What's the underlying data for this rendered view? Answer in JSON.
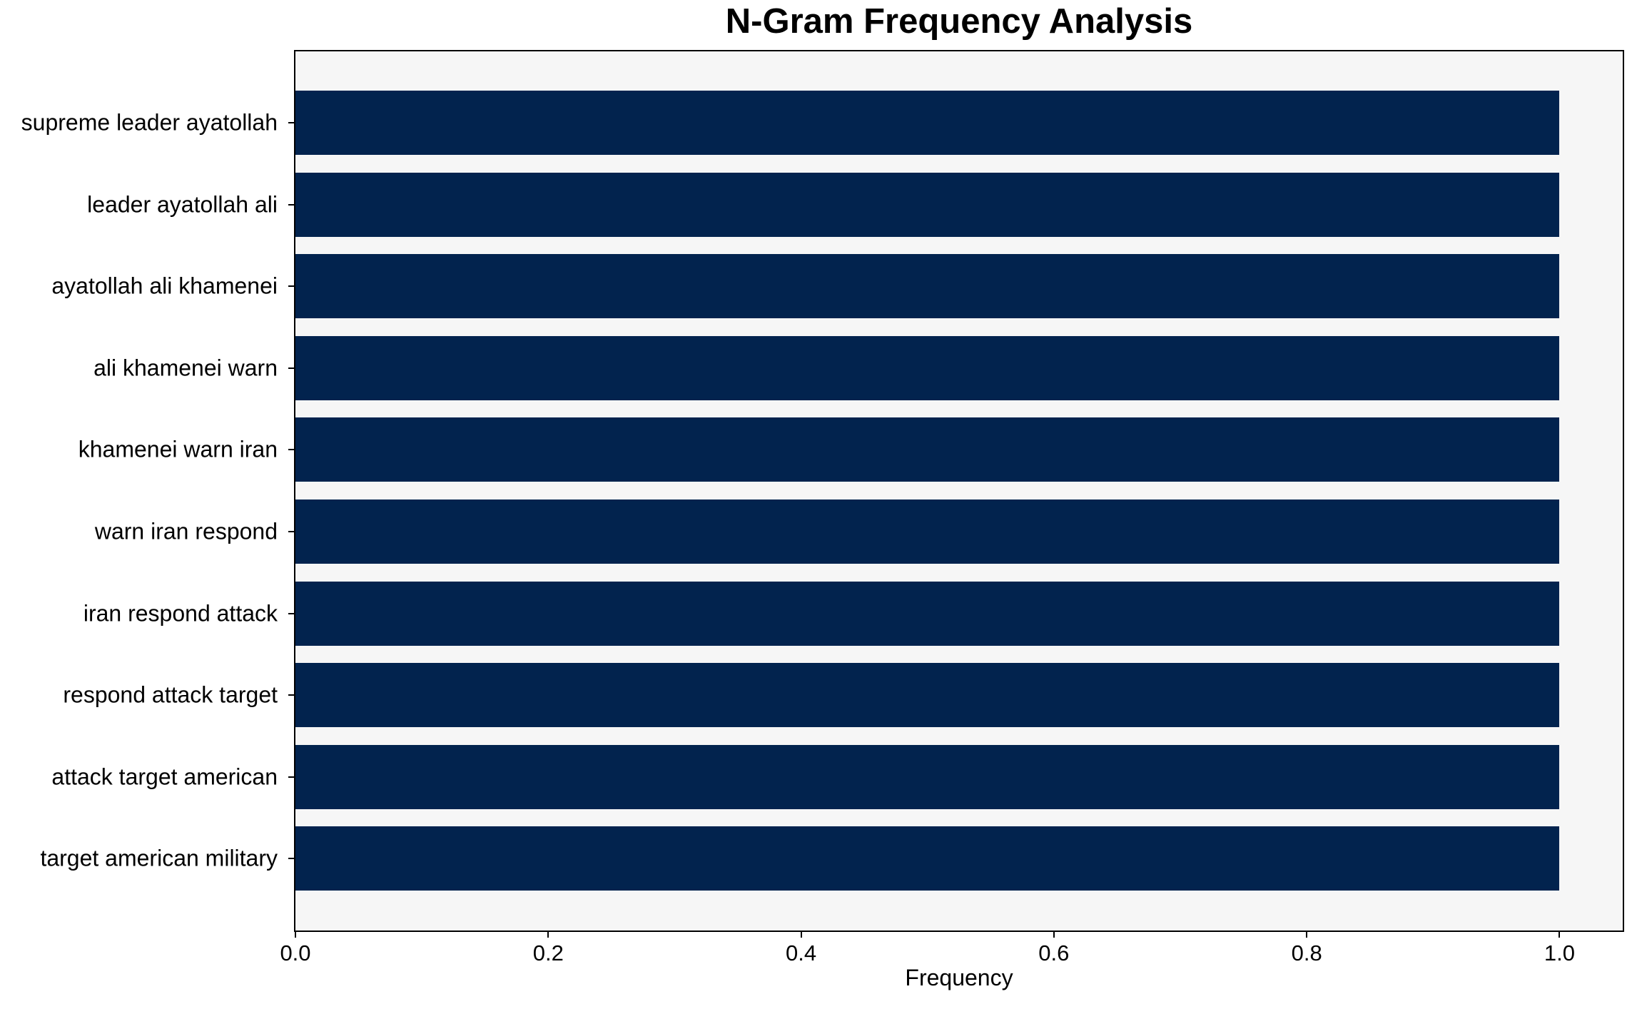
{
  "chart_data": {
    "type": "bar",
    "orientation": "horizontal",
    "title": "N-Gram Frequency Analysis",
    "xlabel": "Frequency",
    "ylabel": "",
    "categories": [
      "supreme leader ayatollah",
      "leader ayatollah ali",
      "ayatollah ali khamenei",
      "ali khamenei warn",
      "khamenei warn iran",
      "warn iran respond",
      "iran respond attack",
      "respond attack target",
      "attack target american",
      "target american military"
    ],
    "values": [
      1.0,
      1.0,
      1.0,
      1.0,
      1.0,
      1.0,
      1.0,
      1.0,
      1.0,
      1.0
    ],
    "xlim": [
      0.0,
      1.05
    ],
    "xticks": [
      0.0,
      0.2,
      0.4,
      0.6,
      0.8,
      1.0
    ],
    "xtick_labels": [
      "0.0",
      "0.2",
      "0.4",
      "0.6",
      "0.8",
      "1.0"
    ],
    "grid": false,
    "legend": "none",
    "bar_color": "#02234e",
    "plot_bg": "#f6f6f6",
    "figure_bg": "#ffffff",
    "text_color": "#000000"
  }
}
